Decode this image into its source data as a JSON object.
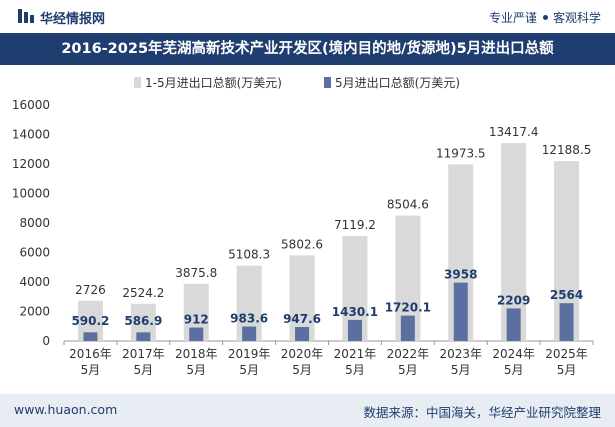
{
  "header": {
    "brand": "华经情报网",
    "slogan_left": "专业严谨",
    "slogan_right": "客观科学"
  },
  "title": "2016-2025年芜湖高新技术产业开发区(境内目的地/货源地)5月进出口总额",
  "footer": {
    "website": "www.huaon.com",
    "source": "数据来源：中国海关，华经产业研究院整理"
  },
  "colors": {
    "brand": "#1f3d6e",
    "series1": "#d9d9d9",
    "series2": "#5b6fa0"
  },
  "chart_data": {
    "type": "bar",
    "categories": [
      "2016年\n5月",
      "2017年\n5月",
      "2018年\n5月",
      "2019年\n5月",
      "2020年\n5月",
      "2021年\n5月",
      "2022年\n5月",
      "2023年\n5月",
      "2024年\n5月",
      "2025年\n5月"
    ],
    "series": [
      {
        "name": "1-5月进出口总额(万美元)",
        "values": [
          2726,
          2524.2,
          3875.8,
          5108.3,
          5802.6,
          7119.2,
          8504.6,
          11973.5,
          13417.4,
          12188.5
        ]
      },
      {
        "name": "5月进出口总额(万美元)",
        "values": [
          590.2,
          586.9,
          912,
          983.6,
          947.6,
          1430.1,
          1720.1,
          3958,
          2209,
          2564
        ]
      }
    ],
    "yticks": [
      "0",
      "2000",
      "4000",
      "6000",
      "8000",
      "10000",
      "12000",
      "14000",
      "16000"
    ],
    "ylim": [
      0,
      16000
    ],
    "legend_position": "top",
    "grid": false
  }
}
